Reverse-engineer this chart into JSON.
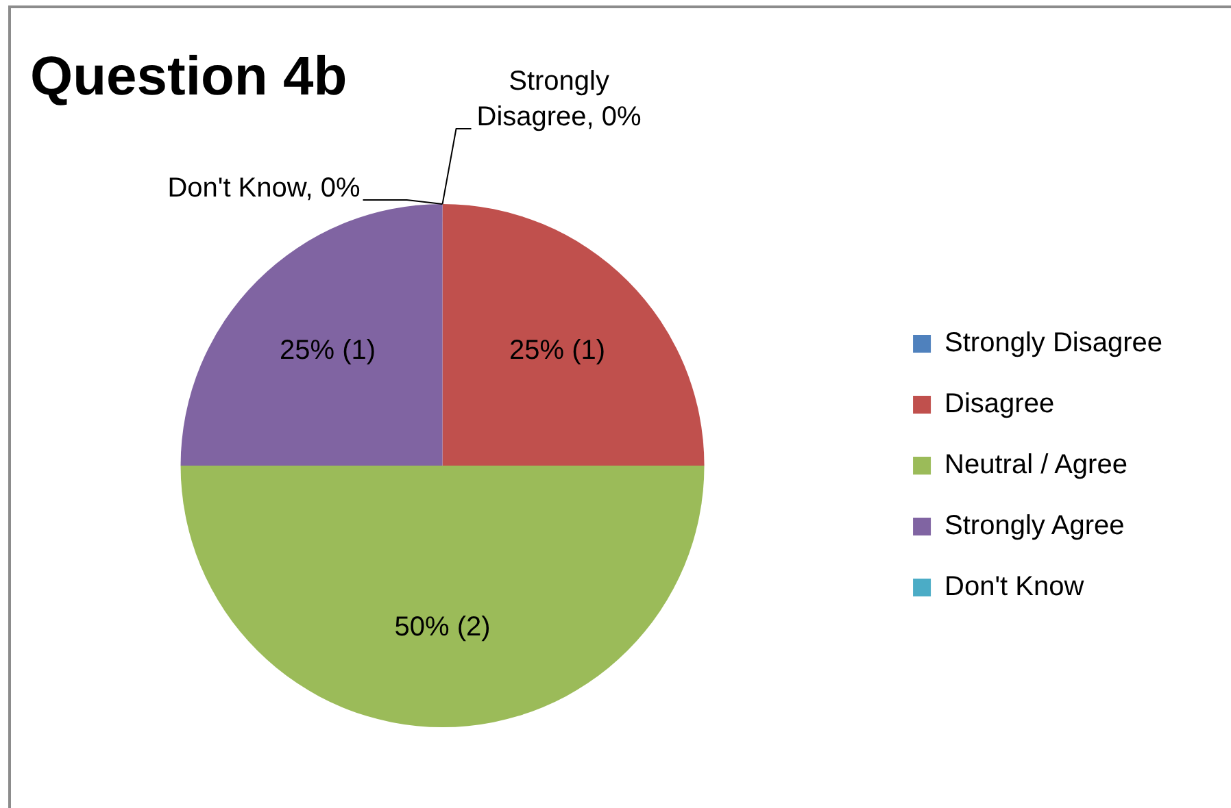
{
  "chart_data": {
    "type": "pie",
    "title": "Question 4b",
    "categories": [
      "Strongly Disagree",
      "Disagree",
      "Neutral / Agree",
      "Strongly Agree",
      "Don't Know"
    ],
    "values": [
      0,
      25,
      50,
      25,
      0
    ],
    "colors": [
      "#4f81bd",
      "#c0504d",
      "#9bbb59",
      "#8064a2",
      "#4bacc6"
    ],
    "value_labels": [
      "Strongly Disagree, 0%",
      "25% (1)",
      "50% (2)",
      "25% (1)",
      "Don't Know, 0%"
    ],
    "legend": "right"
  }
}
